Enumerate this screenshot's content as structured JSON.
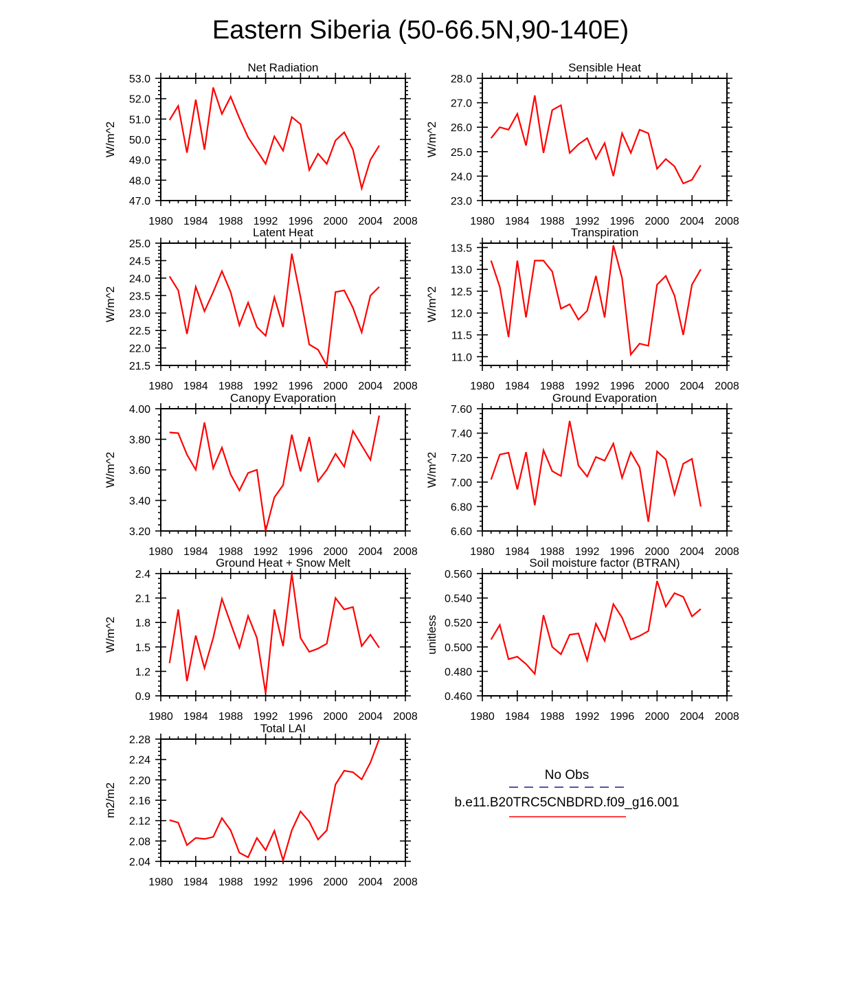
{
  "figure": {
    "title": "Eastern Siberia (50-66.5N,90-140E)"
  },
  "legend": {
    "entries": [
      {
        "name": "No Obs",
        "color": "#1a1a8c",
        "style": "dashed"
      },
      {
        "name": "b.e11.B20TRC5CNBDRD.f09_g16.001",
        "color": "#ff0000",
        "style": "solid"
      }
    ]
  },
  "chart_data": [
    {
      "type": "line",
      "title": "Net Radiation",
      "ylabel": "W/m^2",
      "xlim": [
        1980,
        2008
      ],
      "ylim": [
        47.0,
        53.0
      ],
      "x_ticks": [
        "1980",
        "1984",
        "1988",
        "1992",
        "1996",
        "2000",
        "2004",
        "2008"
      ],
      "y_ticks": [
        "47.0",
        "48.0",
        "49.0",
        "50.0",
        "51.0",
        "52.0",
        "53.0"
      ],
      "series": [
        {
          "color": "#ff0000",
          "x": [
            1981,
            1982,
            1983,
            1984,
            1985,
            1986,
            1987,
            1988,
            1989,
            1990,
            1991,
            1992,
            1993,
            1994,
            1995,
            1996,
            1997,
            1998,
            1999,
            2000,
            2001,
            2002,
            2003,
            2004,
            2005
          ],
          "values": [
            50.95,
            51.65,
            49.35,
            51.95,
            49.5,
            52.55,
            51.25,
            52.1,
            51.05,
            50.1,
            49.45,
            48.8,
            50.15,
            49.45,
            51.1,
            50.75,
            48.5,
            49.3,
            48.8,
            49.95,
            50.35,
            49.5,
            47.6,
            49.0,
            49.7
          ]
        }
      ]
    },
    {
      "type": "line",
      "title": "Sensible Heat",
      "ylabel": "W/m^2",
      "xlim": [
        1980,
        2008
      ],
      "ylim": [
        23.0,
        28.0
      ],
      "x_ticks": [
        "1980",
        "1984",
        "1988",
        "1992",
        "1996",
        "2000",
        "2004",
        "2008"
      ],
      "y_ticks": [
        "23.0",
        "24.0",
        "25.0",
        "26.0",
        "27.0",
        "28.0"
      ],
      "series": [
        {
          "color": "#ff0000",
          "x": [
            1981,
            1982,
            1983,
            1984,
            1985,
            1986,
            1987,
            1988,
            1989,
            1990,
            1991,
            1992,
            1993,
            1994,
            1995,
            1996,
            1997,
            1998,
            1999,
            2000,
            2001,
            2002,
            2003,
            2004,
            2005
          ],
          "values": [
            25.55,
            26.0,
            25.9,
            26.55,
            25.25,
            27.3,
            24.95,
            26.7,
            26.9,
            24.95,
            25.3,
            25.55,
            24.7,
            25.35,
            24.0,
            25.75,
            24.95,
            25.9,
            25.75,
            24.3,
            24.7,
            24.4,
            23.7,
            23.85,
            24.45
          ]
        }
      ]
    },
    {
      "type": "line",
      "title": "Latent Heat",
      "ylabel": "W/m^2",
      "xlim": [
        1980,
        2008
      ],
      "ylim": [
        21.5,
        25.0
      ],
      "x_ticks": [
        "1980",
        "1984",
        "1988",
        "1992",
        "1996",
        "2000",
        "2004",
        "2008"
      ],
      "y_ticks": [
        "21.5",
        "22.0",
        "22.5",
        "23.0",
        "23.5",
        "24.0",
        "24.5",
        "25.0"
      ],
      "series": [
        {
          "color": "#ff0000",
          "x": [
            1981,
            1982,
            1983,
            1984,
            1985,
            1986,
            1987,
            1988,
            1989,
            1990,
            1991,
            1992,
            1993,
            1994,
            1995,
            1996,
            1997,
            1998,
            1999,
            2000,
            2001,
            2002,
            2003,
            2004,
            2005
          ],
          "values": [
            24.05,
            23.65,
            22.4,
            23.75,
            23.05,
            23.6,
            24.2,
            23.6,
            22.65,
            23.3,
            22.6,
            22.35,
            23.45,
            22.6,
            24.7,
            23.45,
            22.1,
            21.95,
            21.5,
            23.6,
            23.65,
            23.15,
            22.45,
            23.5,
            23.75
          ]
        }
      ]
    },
    {
      "type": "line",
      "title": "Transpiration",
      "ylabel": "W/m^2",
      "xlim": [
        1980,
        2008
      ],
      "ylim": [
        10.8,
        13.6
      ],
      "x_ticks": [
        "1980",
        "1984",
        "1988",
        "1992",
        "1996",
        "2000",
        "2004",
        "2008"
      ],
      "y_ticks": [
        "11.0",
        "11.5",
        "12.0",
        "12.5",
        "13.0",
        "13.5"
      ],
      "series": [
        {
          "color": "#ff0000",
          "x": [
            1981,
            1982,
            1983,
            1984,
            1985,
            1986,
            1987,
            1988,
            1989,
            1990,
            1991,
            1992,
            1993,
            1994,
            1995,
            1996,
            1997,
            1998,
            1999,
            2000,
            2001,
            2002,
            2003,
            2004,
            2005
          ],
          "values": [
            13.2,
            12.6,
            11.45,
            13.2,
            11.9,
            13.2,
            13.2,
            12.95,
            12.1,
            12.2,
            11.85,
            12.05,
            12.85,
            11.9,
            13.55,
            12.8,
            11.05,
            11.3,
            11.25,
            12.65,
            12.85,
            12.4,
            11.5,
            12.65,
            13.0
          ]
        }
      ]
    },
    {
      "type": "line",
      "title": "Canopy Evaporation",
      "ylabel": "W/m^2",
      "xlim": [
        1980,
        2008
      ],
      "ylim": [
        3.2,
        4.0
      ],
      "x_ticks": [
        "1980",
        "1984",
        "1988",
        "1992",
        "1996",
        "2000",
        "2004",
        "2008"
      ],
      "y_ticks": [
        "3.20",
        "3.40",
        "3.60",
        "3.80",
        "4.00"
      ],
      "series": [
        {
          "color": "#ff0000",
          "x": [
            1981,
            1982,
            1983,
            1984,
            1985,
            1986,
            1987,
            1988,
            1989,
            1990,
            1991,
            1992,
            1993,
            1994,
            1995,
            1996,
            1997,
            1998,
            1999,
            2000,
            2001,
            2002,
            2003,
            2004,
            2005
          ],
          "values": [
            3.845,
            3.84,
            3.7,
            3.6,
            3.91,
            3.61,
            3.745,
            3.57,
            3.465,
            3.58,
            3.6,
            3.2,
            3.42,
            3.5,
            3.83,
            3.59,
            3.815,
            3.525,
            3.6,
            3.705,
            3.62,
            3.855,
            3.76,
            3.665,
            3.955
          ]
        }
      ]
    },
    {
      "type": "line",
      "title": "Ground Evaporation",
      "ylabel": "W/m^2",
      "xlim": [
        1980,
        2008
      ],
      "ylim": [
        6.6,
        7.6
      ],
      "x_ticks": [
        "1980",
        "1984",
        "1988",
        "1992",
        "1996",
        "2000",
        "2004",
        "2008"
      ],
      "y_ticks": [
        "6.60",
        "6.80",
        "7.00",
        "7.20",
        "7.40",
        "7.60"
      ],
      "series": [
        {
          "color": "#ff0000",
          "x": [
            1981,
            1982,
            1983,
            1984,
            1985,
            1986,
            1987,
            1988,
            1989,
            1990,
            1991,
            1992,
            1993,
            1994,
            1995,
            1996,
            1997,
            1998,
            1999,
            2000,
            2001,
            2002,
            2003,
            2004,
            2005
          ],
          "values": [
            7.02,
            7.225,
            7.24,
            6.94,
            7.245,
            6.81,
            7.26,
            7.09,
            7.05,
            7.5,
            7.135,
            7.045,
            7.205,
            7.175,
            7.315,
            7.035,
            7.245,
            7.12,
            6.675,
            7.25,
            7.185,
            6.9,
            7.15,
            7.19,
            6.8
          ]
        }
      ]
    },
    {
      "type": "line",
      "title": "Ground Heat + Snow Melt",
      "ylabel": "W/m^2",
      "xlim": [
        1980,
        2008
      ],
      "ylim": [
        0.9,
        2.4
      ],
      "x_ticks": [
        "1980",
        "1984",
        "1988",
        "1992",
        "1996",
        "2000",
        "2004",
        "2008"
      ],
      "y_ticks": [
        "0.9",
        "1.2",
        "1.5",
        "1.8",
        "2.1",
        "2.4"
      ],
      "series": [
        {
          "color": "#ff0000",
          "x": [
            1981,
            1982,
            1983,
            1984,
            1985,
            1986,
            1987,
            1988,
            1989,
            1990,
            1991,
            1992,
            1993,
            1994,
            1995,
            1996,
            1997,
            1998,
            1999,
            2000,
            2001,
            2002,
            2003,
            2004,
            2005
          ],
          "values": [
            1.3,
            1.96,
            1.08,
            1.64,
            1.24,
            1.61,
            2.09,
            1.79,
            1.49,
            1.88,
            1.61,
            0.93,
            1.96,
            1.51,
            2.4,
            1.61,
            1.44,
            1.48,
            1.54,
            2.1,
            1.96,
            1.99,
            1.51,
            1.65,
            1.49
          ]
        }
      ]
    },
    {
      "type": "line",
      "title": "Soil moisture factor (BTRAN)",
      "ylabel": "unitless",
      "xlim": [
        1980,
        2008
      ],
      "ylim": [
        0.46,
        0.56
      ],
      "x_ticks": [
        "1980",
        "1984",
        "1988",
        "1992",
        "1996",
        "2000",
        "2004",
        "2008"
      ],
      "y_ticks": [
        "0.460",
        "0.480",
        "0.500",
        "0.520",
        "0.540",
        "0.560"
      ],
      "series": [
        {
          "color": "#ff0000",
          "x": [
            1981,
            1982,
            1983,
            1984,
            1985,
            1986,
            1987,
            1988,
            1989,
            1990,
            1991,
            1992,
            1993,
            1994,
            1995,
            1996,
            1997,
            1998,
            1999,
            2000,
            2001,
            2002,
            2003,
            2004,
            2005
          ],
          "values": [
            0.506,
            0.518,
            0.49,
            0.492,
            0.486,
            0.478,
            0.526,
            0.5,
            0.494,
            0.51,
            0.511,
            0.489,
            0.519,
            0.505,
            0.535,
            0.524,
            0.506,
            0.509,
            0.513,
            0.554,
            0.533,
            0.544,
            0.541,
            0.525,
            0.531
          ]
        }
      ]
    },
    {
      "type": "line",
      "title": "Total LAI",
      "ylabel": "m2/m2",
      "xlim": [
        1980,
        2008
      ],
      "ylim": [
        2.04,
        2.28
      ],
      "x_ticks": [
        "1980",
        "1984",
        "1988",
        "1992",
        "1996",
        "2000",
        "2004",
        "2008"
      ],
      "y_ticks": [
        "2.04",
        "2.08",
        "2.12",
        "2.16",
        "2.20",
        "2.24",
        "2.28"
      ],
      "series": [
        {
          "color": "#ff0000",
          "x": [
            1981,
            1982,
            1983,
            1984,
            1985,
            1986,
            1987,
            1988,
            1989,
            1990,
            1991,
            1992,
            1993,
            1994,
            1995,
            1996,
            1997,
            1998,
            1999,
            2000,
            2001,
            2002,
            2003,
            2004,
            2005
          ],
          "values": [
            2.121,
            2.116,
            2.072,
            2.086,
            2.084,
            2.088,
            2.125,
            2.101,
            2.057,
            2.048,
            2.086,
            2.062,
            2.1,
            2.042,
            2.101,
            2.138,
            2.118,
            2.083,
            2.101,
            2.191,
            2.218,
            2.215,
            2.201,
            2.234,
            2.28
          ]
        }
      ]
    }
  ]
}
